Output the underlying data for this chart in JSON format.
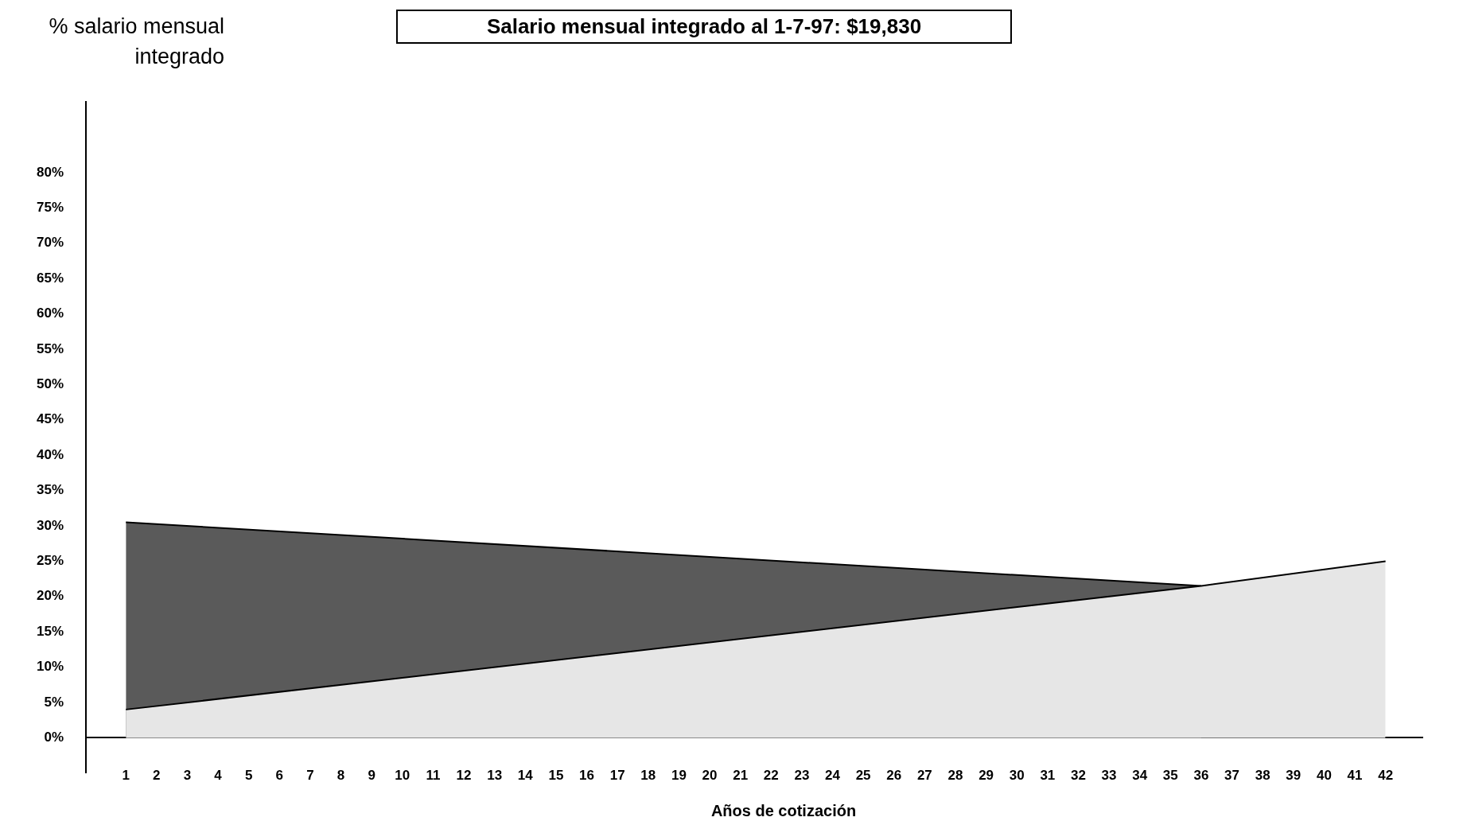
{
  "chart_data": {
    "type": "area",
    "title": "Salario mensual integrado al 1-7-97: $19,830",
    "xlabel": "Años de cotización",
    "ylabel": "% salario mensual integrado",
    "series": [
      {
        "color": "#5a5a5a",
        "x": [
          1,
          36
        ],
        "values": [
          30.5,
          21.5
        ]
      },
      {
        "color": "#e6e6e6",
        "x": [
          1,
          36,
          42
        ],
        "values": [
          4,
          21.5,
          25
        ]
      }
    ],
    "xlim": [
      -0.3,
      43.2
    ],
    "xticks": [
      1,
      2,
      3,
      4,
      5,
      6,
      7,
      8,
      9,
      10,
      11,
      12,
      13,
      14,
      15,
      16,
      17,
      18,
      19,
      20,
      21,
      22,
      23,
      24,
      25,
      26,
      27,
      28,
      29,
      30,
      31,
      32,
      33,
      34,
      35,
      36,
      37,
      38,
      39,
      40,
      41,
      42
    ],
    "ylim": [
      -5,
      90
    ],
    "yticks": [
      {
        "value": 0,
        "label": "0%"
      },
      {
        "value": 5,
        "label": "5%"
      },
      {
        "value": 10,
        "label": "10%"
      },
      {
        "value": 15,
        "label": "15%"
      },
      {
        "value": 20,
        "label": "20%"
      },
      {
        "value": 25,
        "label": "25%"
      },
      {
        "value": 30,
        "label": "30%"
      },
      {
        "value": 35,
        "label": "35%"
      },
      {
        "value": 40,
        "label": "40%"
      },
      {
        "value": 45,
        "label": "45%"
      },
      {
        "value": 50,
        "label": "50%"
      },
      {
        "value": 55,
        "label": "55%"
      },
      {
        "value": 60,
        "label": "60%"
      },
      {
        "value": 65,
        "label": "65%"
      },
      {
        "value": 70,
        "label": "70%"
      },
      {
        "value": 75,
        "label": "75%"
      },
      {
        "value": 80,
        "label": "80%"
      }
    ],
    "grid": false,
    "legend": false
  }
}
